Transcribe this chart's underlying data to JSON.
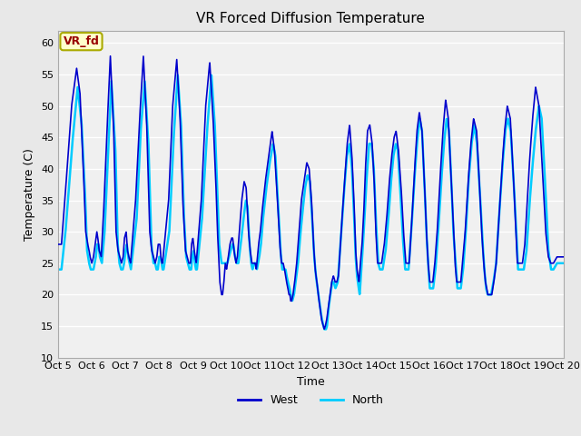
{
  "title": "VR Forced Diffusion Temperature",
  "xlabel": "Time",
  "ylabel": "Temperature (C)",
  "annotation_text": "VR_fd",
  "annotation_bg": "#ffffcc",
  "annotation_border": "#aaaa00",
  "annotation_text_color": "#990000",
  "ylim": [
    10,
    62
  ],
  "yticks": [
    10,
    15,
    20,
    25,
    30,
    35,
    40,
    45,
    50,
    55,
    60
  ],
  "xtick_labels": [
    "Oct 5",
    "Oct 6",
    "Oct 7",
    "Oct 8",
    "Oct 9",
    "Oct 10",
    "Oct 11",
    "Oct 12",
    "Oct 13",
    "Oct 14",
    "Oct 15",
    "Oct 16",
    "Oct 17",
    "Oct 18",
    "Oct 19",
    "Oct 20"
  ],
  "color_west": "#0000cc",
  "color_north": "#00ccff",
  "legend_labels": [
    "West",
    "North"
  ],
  "plot_bg": "#e8e8e8",
  "plot_inner_bg": "#f0f0f0",
  "grid_color": "#ffffff",
  "linewidth_west": 1.2,
  "linewidth_north": 1.8
}
